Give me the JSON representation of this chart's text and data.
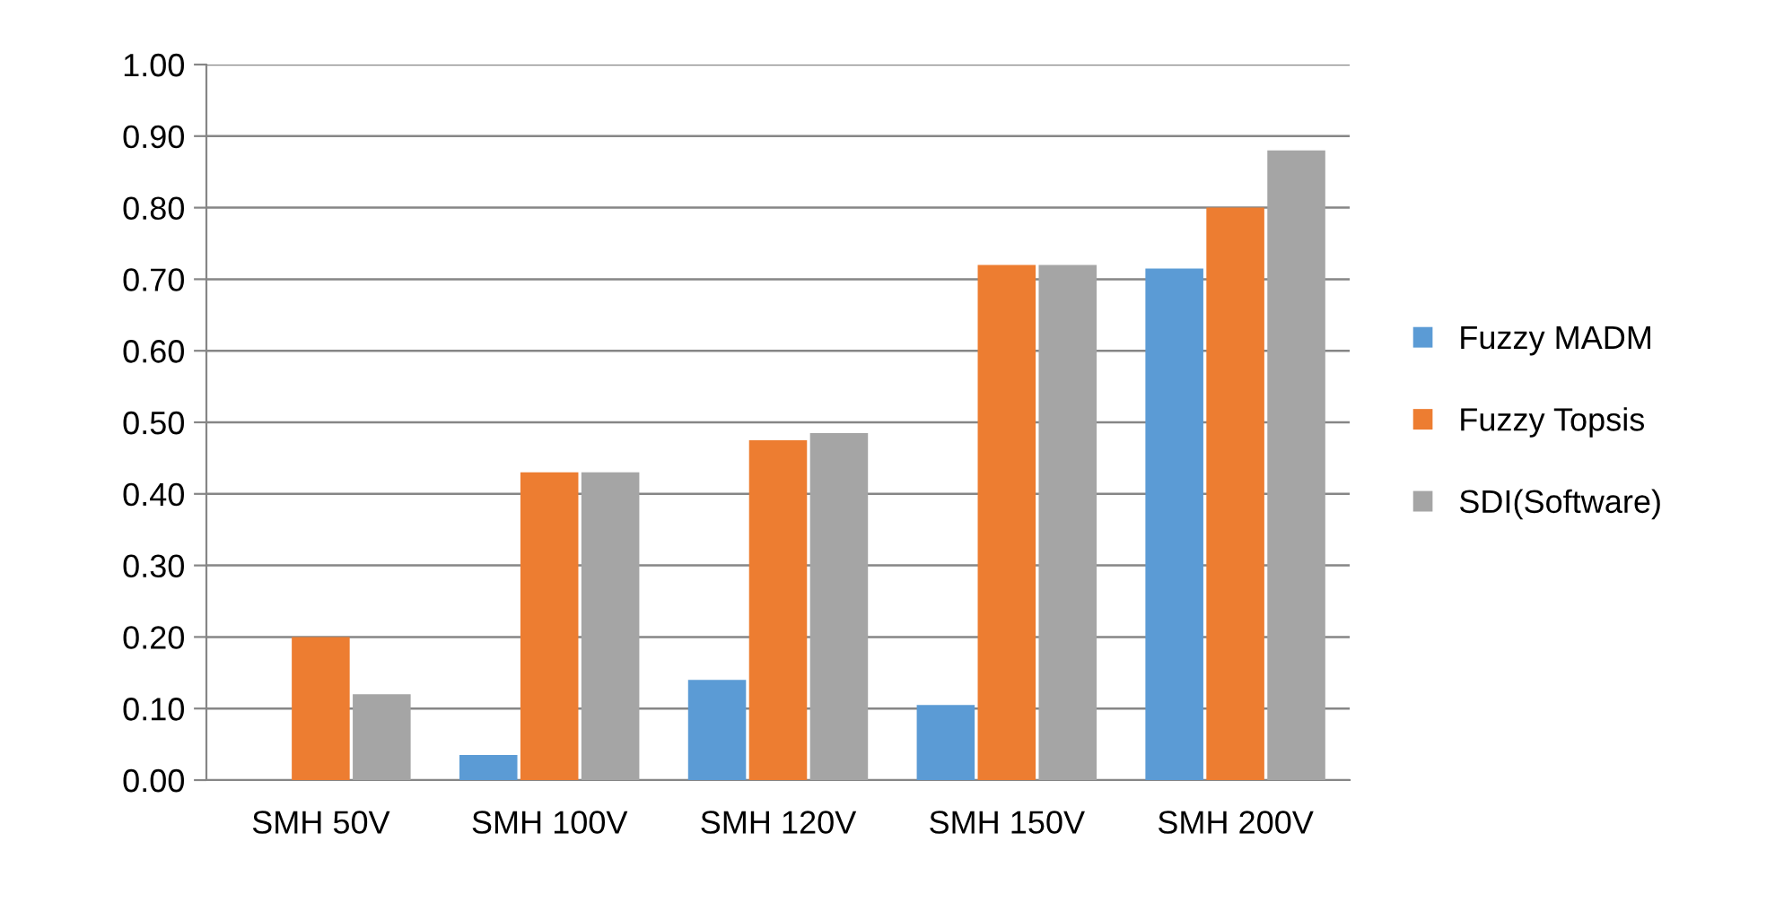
{
  "chart_data": {
    "type": "bar",
    "categories": [
      "SMH 50V",
      "SMH 100V",
      "SMH 120V",
      "SMH 150V",
      "SMH 200V"
    ],
    "series": [
      {
        "name": "Fuzzy MADM",
        "color": "#5b9bd5",
        "values": [
          0,
          0.035,
          0.14,
          0.105,
          0.715
        ]
      },
      {
        "name": "Fuzzy Topsis",
        "color": "#ed7d31",
        "values": [
          0.2,
          0.43,
          0.475,
          0.72,
          0.8
        ]
      },
      {
        "name": "SDI(Software)",
        "color": "#a5a5a5",
        "values": [
          0.12,
          0.43,
          0.485,
          0.72,
          0.88
        ]
      }
    ],
    "ylim": [
      0,
      1
    ],
    "yticks": [
      {
        "value": 0,
        "label": "0.00"
      },
      {
        "value": 0.1,
        "label": "0.10"
      },
      {
        "value": 0.2,
        "label": "0.20"
      },
      {
        "value": 0.3,
        "label": "0.30"
      },
      {
        "value": 0.4,
        "label": "0.40"
      },
      {
        "value": 0.5,
        "label": "0.50"
      },
      {
        "value": 0.6,
        "label": "0.60"
      },
      {
        "value": 0.7,
        "label": "0.70"
      },
      {
        "value": 0.8,
        "label": "0.80"
      },
      {
        "value": 0.9,
        "label": "0.90"
      },
      {
        "value": 1,
        "label": "1.00"
      }
    ],
    "grid": "y",
    "legend": "right"
  }
}
